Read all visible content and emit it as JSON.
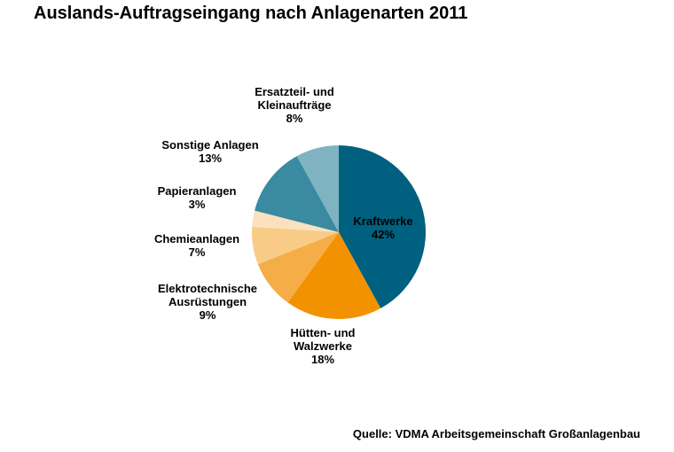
{
  "title": "Auslands-Auftragseingang nach Anlagenarten 2011",
  "source": "Quelle: VDMA Arbeitsgemeinschaft Großanlagenbau",
  "chart_data": {
    "type": "pie",
    "title": "Auslands-Auftragseingang nach Anlagenarten 2011",
    "slices": [
      {
        "label": [
          "Kraftwerke"
        ],
        "value_label": "42%",
        "value": 42,
        "color": "#00607f"
      },
      {
        "label": [
          "Hütten- und",
          "Walzwerke"
        ],
        "value_label": "18%",
        "value": 18,
        "color": "#f39200"
      },
      {
        "label": [
          "Elektrotechnische",
          "Ausrüstungen"
        ],
        "value_label": "9%",
        "value": 9,
        "color": "#f5ad47"
      },
      {
        "label": [
          "Chemieanlagen"
        ],
        "value_label": "7%",
        "value": 7,
        "color": "#f8cb87"
      },
      {
        "label": [
          "Papieranlagen"
        ],
        "value_label": "3%",
        "value": 3,
        "color": "#fbe1be"
      },
      {
        "label": [
          "Sonstige Anlagen"
        ],
        "value_label": "13%",
        "value": 13,
        "color": "#3a8aa1"
      },
      {
        "label": [
          "Ersatzteil- und",
          "Kleinaufträge"
        ],
        "value_label": "8%",
        "value": 8,
        "color": "#7fb3c2"
      }
    ]
  }
}
